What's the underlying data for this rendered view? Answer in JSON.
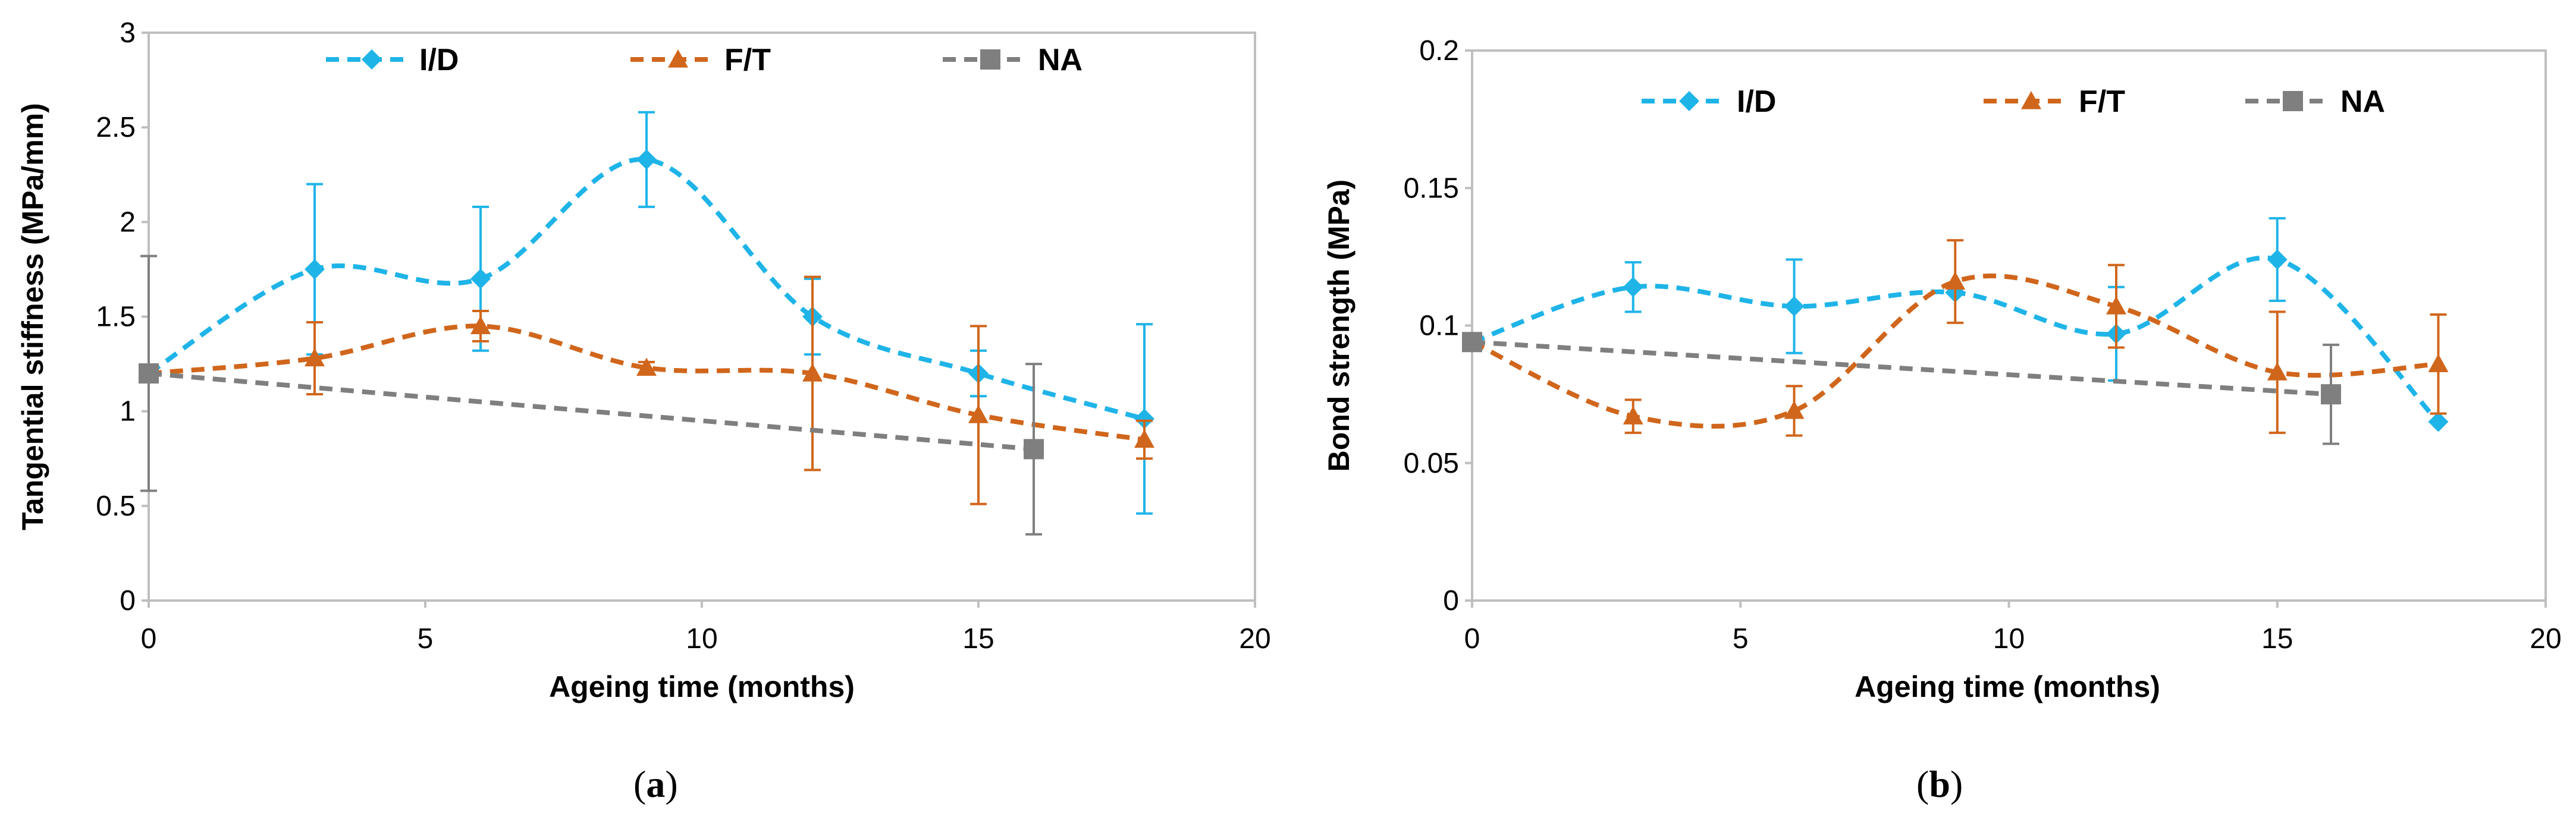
{
  "chart_data": [
    {
      "type": "line",
      "panel_label": "a",
      "title": "",
      "xlabel": "Ageing time (months)",
      "ylabel": "Tangential stiffness (MPa/mm)",
      "xlim": [
        0,
        20
      ],
      "ylim": [
        0,
        3
      ],
      "xticks": [
        "0",
        "5",
        "10",
        "15",
        "20"
      ],
      "yticks": [
        "0",
        "0.5",
        "1",
        "1.5",
        "2",
        "2.5",
        "3"
      ],
      "grid": false,
      "legend_position": "top",
      "series": [
        {
          "name": "I/D",
          "color": "#1fb4e8",
          "marker": "diamond",
          "smooth": true,
          "x": [
            0,
            3,
            6,
            9,
            12,
            15,
            18
          ],
          "y": [
            1.2,
            1.75,
            1.7,
            2.33,
            1.5,
            1.2,
            0.96
          ],
          "err": [
            0.0,
            0.45,
            0.38,
            0.25,
            0.2,
            0.12,
            0.5
          ]
        },
        {
          "name": "F/T",
          "color": "#d0661c",
          "marker": "triangle",
          "smooth": true,
          "x": [
            0,
            3,
            6,
            9,
            12,
            15,
            18
          ],
          "y": [
            1.2,
            1.28,
            1.45,
            1.23,
            1.2,
            0.98,
            0.85
          ],
          "err": [
            0.0,
            0.19,
            0.08,
            0.03,
            0.51,
            0.47,
            0.1
          ]
        },
        {
          "name": "NA",
          "color": "#7f7f7f",
          "marker": "square",
          "smooth": false,
          "x": [
            0,
            16
          ],
          "y": [
            1.2,
            0.8
          ],
          "err": [
            0.62,
            0.45
          ]
        }
      ]
    },
    {
      "type": "line",
      "panel_label": "b",
      "title": "",
      "xlabel": "Ageing time (months)",
      "ylabel": "Bond strength (MPa)",
      "xlim": [
        0,
        20
      ],
      "ylim": [
        0,
        0.2
      ],
      "xticks": [
        "0",
        "5",
        "10",
        "15",
        "20"
      ],
      "yticks": [
        "0",
        "0.05",
        "0.1",
        "0.15",
        "0.2"
      ],
      "grid": false,
      "legend_position": "top",
      "series": [
        {
          "name": "I/D",
          "color": "#1fb4e8",
          "marker": "diamond",
          "smooth": true,
          "x": [
            0,
            3,
            6,
            9,
            12,
            15,
            18
          ],
          "y": [
            0.094,
            0.114,
            0.107,
            0.112,
            0.097,
            0.124,
            0.065
          ],
          "err": [
            0.0,
            0.009,
            0.017,
            0.0,
            0.017,
            0.015,
            0.0
          ]
        },
        {
          "name": "F/T",
          "color": "#d0661c",
          "marker": "triangle",
          "smooth": true,
          "x": [
            0,
            3,
            6,
            9,
            12,
            15,
            18
          ],
          "y": [
            0.094,
            0.067,
            0.069,
            0.116,
            0.107,
            0.083,
            0.086
          ],
          "err": [
            0.0,
            0.006,
            0.009,
            0.015,
            0.015,
            0.022,
            0.018
          ]
        },
        {
          "name": "NA",
          "color": "#7f7f7f",
          "marker": "square",
          "smooth": false,
          "x": [
            0,
            16
          ],
          "y": [
            0.094,
            0.075
          ],
          "err": [
            0.0,
            0.018
          ]
        }
      ]
    }
  ]
}
